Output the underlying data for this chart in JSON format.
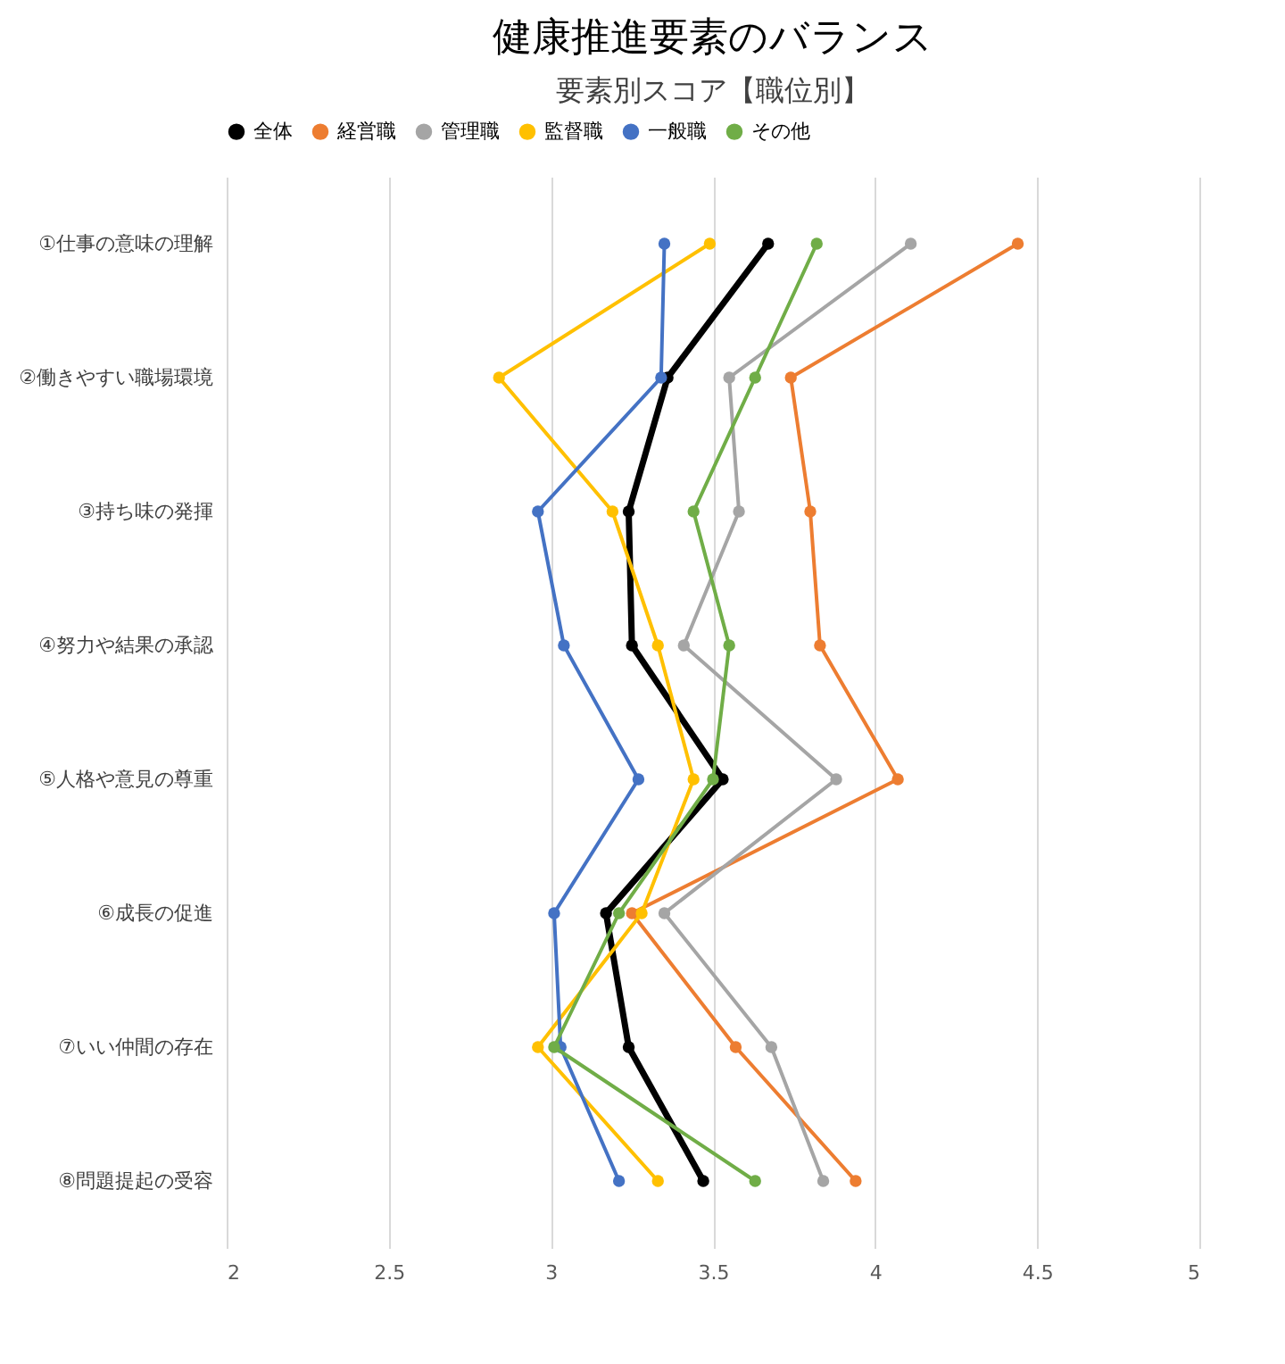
{
  "chart_data": {
    "type": "line",
    "orientation": "horizontal",
    "title": "健康推進要素のバランス",
    "subtitle": "要素別スコア【職位別】",
    "categories": [
      "①仕事の意味の理解",
      "②働きやすい職場環境",
      "③持ち味の発揮",
      "④努力や結果の承認",
      "⑤人格や意見の尊重",
      "⑥成長の促進",
      "⑦いい仲間の存在",
      "⑧問題提起の受容"
    ],
    "series": [
      {
        "name": "全体",
        "color": "#000000",
        "values": [
          3.67,
          3.36,
          3.24,
          3.25,
          3.53,
          3.17,
          3.24,
          3.47
        ]
      },
      {
        "name": "経営職",
        "color": "#ed7d31",
        "values": [
          4.44,
          3.74,
          3.8,
          3.83,
          4.07,
          3.25,
          3.57,
          3.94
        ]
      },
      {
        "name": "管理職",
        "color": "#a5a5a5",
        "values": [
          4.11,
          3.55,
          3.58,
          3.41,
          3.88,
          3.35,
          3.68,
          3.84
        ]
      },
      {
        "name": "監督職",
        "color": "#ffc000",
        "values": [
          3.49,
          2.84,
          3.19,
          3.33,
          3.44,
          3.28,
          2.96,
          3.33
        ]
      },
      {
        "name": "一般職",
        "color": "#4472c4",
        "values": [
          3.35,
          3.34,
          2.96,
          3.04,
          3.27,
          3.01,
          3.03,
          3.21
        ]
      },
      {
        "name": "その他",
        "color": "#70ad47",
        "values": [
          3.82,
          3.63,
          3.44,
          3.55,
          3.5,
          3.21,
          3.01,
          3.63
        ]
      }
    ],
    "xlim": [
      2,
      5
    ],
    "xticks": [
      2,
      2.5,
      3,
      3.5,
      4,
      4.5,
      5
    ],
    "grid": "x",
    "legend": "top",
    "marker": "circle"
  }
}
